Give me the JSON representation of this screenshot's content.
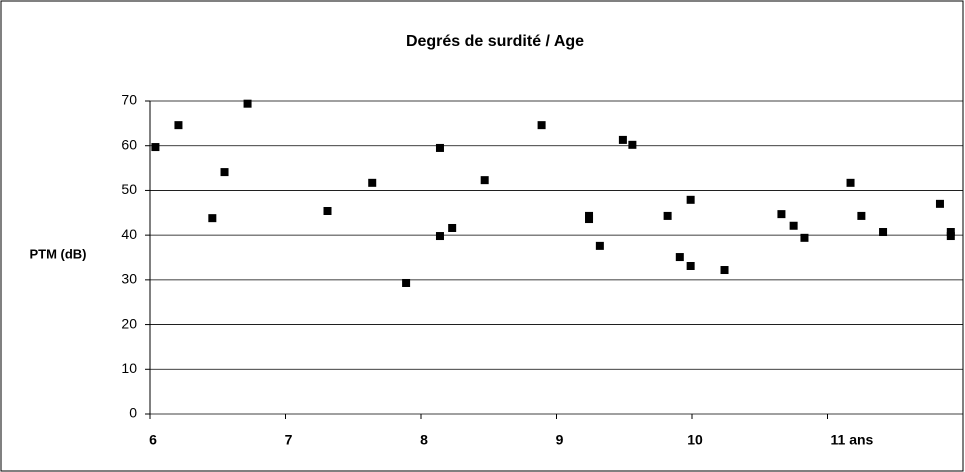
{
  "chart_data": {
    "type": "scatter",
    "title": "Degrés de surdité / Age",
    "ylabel": "PTM (dB)",
    "series": [
      {
        "name": null,
        "color": "#000000",
        "x": [
          6.04,
          6.21,
          6.46,
          6.55,
          6.72,
          7.31,
          7.64,
          7.89,
          8.14,
          8.14,
          8.23,
          8.47,
          8.89,
          9.24,
          9.24,
          9.32,
          9.49,
          9.56,
          9.82,
          9.91,
          9.99,
          9.99,
          10.24,
          10.66,
          10.75,
          10.83,
          11.17,
          11.25,
          11.41,
          11.83,
          11.91,
          11.91
        ],
        "values": [
          59.7,
          64.6,
          43.8,
          54.1,
          69.4,
          45.4,
          51.7,
          29.3,
          59.5,
          39.8,
          41.6,
          52.3,
          64.6,
          44.3,
          43.6,
          37.6,
          61.3,
          60.2,
          44.3,
          35.1,
          47.9,
          33.1,
          32.2,
          44.7,
          42.1,
          39.4,
          51.7,
          44.3,
          40.7,
          47.0,
          40.7,
          39.8
        ]
      }
    ],
    "xlim": [
      6,
      12
    ],
    "xticks": [
      6,
      7,
      8,
      9,
      10,
      {
        "value": 11,
        "label": "11 ans"
      }
    ],
    "ylim": [
      0,
      70
    ],
    "yticks": [
      0,
      10,
      20,
      30,
      40,
      50,
      60,
      70
    ],
    "grid": true
  }
}
